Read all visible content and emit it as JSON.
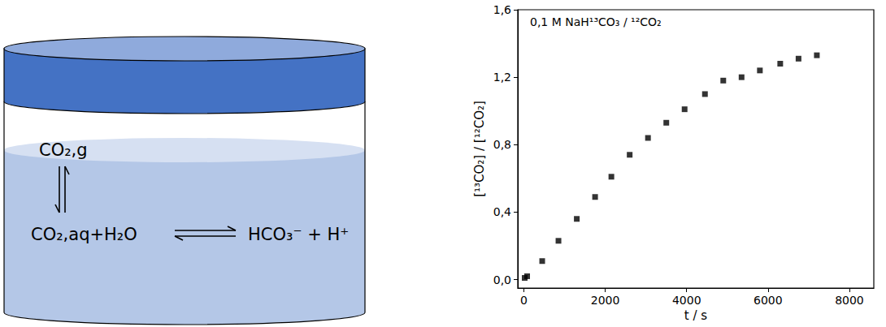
{
  "diagram": {
    "labels": [
      "CO₂,g",
      "CO₂,aq+H₂O",
      "HCO₃⁻ + H⁺"
    ]
  },
  "chart_data": {
    "type": "scatter",
    "annotation": "0,1 M NaH¹³CO₃ / ¹²CO₂",
    "x_label": "t / s",
    "y_label": "[¹³CO₂] / [¹²CO₂]",
    "x": [
      20,
      80,
      450,
      850,
      1300,
      1750,
      2150,
      2600,
      3050,
      3500,
      3950,
      4450,
      4900,
      5350,
      5800,
      6300,
      6750,
      7200
    ],
    "values": [
      0.01,
      0.02,
      0.11,
      0.23,
      0.36,
      0.49,
      0.61,
      0.74,
      0.84,
      0.93,
      1.01,
      1.1,
      1.18,
      1.2,
      1.24,
      1.28,
      1.31,
      1.33
    ],
    "xlim": [
      -150,
      8600
    ],
    "ylim": [
      -0.05,
      1.6
    ],
    "xticks": [
      0,
      2000,
      4000,
      6000,
      8000
    ],
    "yticks": [
      {
        "value": 0,
        "label": "0,0"
      },
      {
        "value": 0.4,
        "label": "0,4"
      },
      {
        "value": 0.8,
        "label": "0,8"
      },
      {
        "value": 1.2,
        "label": "1,2"
      },
      {
        "value": 1.6,
        "label": "1,6"
      }
    ],
    "color": "#000000",
    "marker": "square",
    "grid": false
  }
}
